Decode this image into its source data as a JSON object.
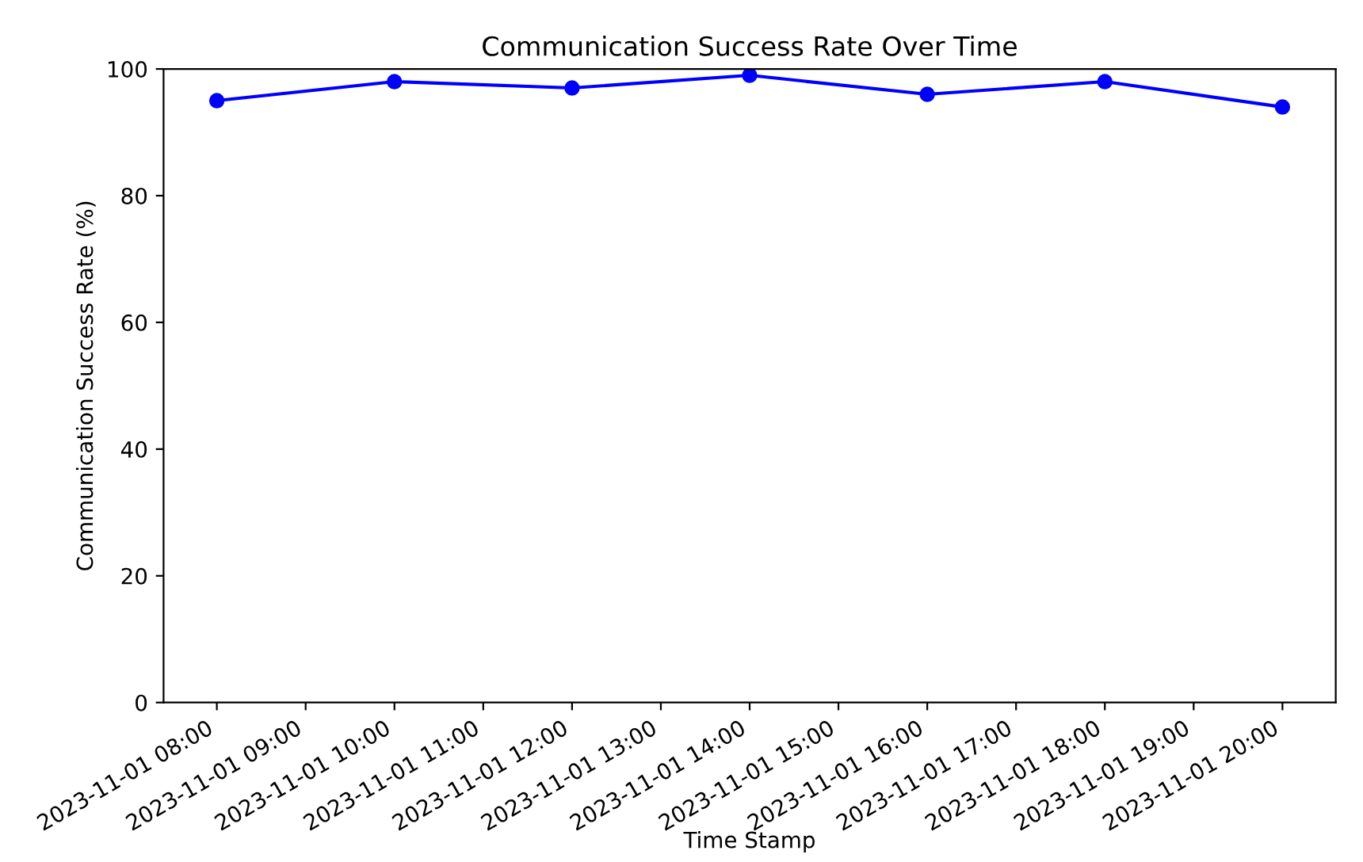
{
  "chart_data": {
    "type": "line",
    "title": "Communication Success Rate Over Time",
    "xlabel": "Time Stamp",
    "ylabel": "Communication Success Rate (%)",
    "x": [
      "2023-11-01T08:00",
      "2023-11-01T10:00",
      "2023-11-01T12:00",
      "2023-11-01T14:00",
      "2023-11-01T16:00",
      "2023-11-01T18:00",
      "2023-11-01T20:00"
    ],
    "series": [
      {
        "color": "#0000ff",
        "values": [
          95,
          98,
          97,
          99,
          96,
          98,
          94
        ]
      }
    ],
    "marker": "circle",
    "line_style": "solid",
    "grid": false,
    "xlim": [
      "2023-11-01T07:24",
      "2023-11-01T20:36"
    ],
    "xticks": [
      {
        "value": "2023-11-01T08:00",
        "label": "2023-11-01 08:00"
      },
      {
        "value": "2023-11-01T09:00",
        "label": "2023-11-01 09:00"
      },
      {
        "value": "2023-11-01T10:00",
        "label": "2023-11-01 10:00"
      },
      {
        "value": "2023-11-01T11:00",
        "label": "2023-11-01 11:00"
      },
      {
        "value": "2023-11-01T12:00",
        "label": "2023-11-01 12:00"
      },
      {
        "value": "2023-11-01T13:00",
        "label": "2023-11-01 13:00"
      },
      {
        "value": "2023-11-01T14:00",
        "label": "2023-11-01 14:00"
      },
      {
        "value": "2023-11-01T15:00",
        "label": "2023-11-01 15:00"
      },
      {
        "value": "2023-11-01T16:00",
        "label": "2023-11-01 16:00"
      },
      {
        "value": "2023-11-01T17:00",
        "label": "2023-11-01 17:00"
      },
      {
        "value": "2023-11-01T18:00",
        "label": "2023-11-01 18:00"
      },
      {
        "value": "2023-11-01T19:00",
        "label": "2023-11-01 19:00"
      },
      {
        "value": "2023-11-01T20:00",
        "label": "2023-11-01 20:00"
      }
    ],
    "ylim": [
      0,
      100
    ],
    "yticks": [
      0,
      20,
      40,
      60,
      80,
      100
    ]
  }
}
